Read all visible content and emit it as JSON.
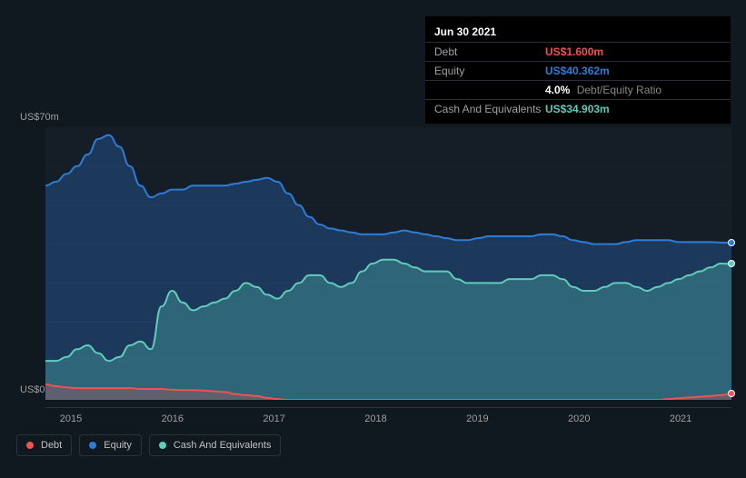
{
  "chart": {
    "type": "area",
    "background_color": "#101820",
    "plot_background": "#151d27",
    "grid_color": "#1a222c",
    "axis_text_color": "#a0a0a0",
    "ylim": [
      0,
      70
    ],
    "y_labels": [
      {
        "value": 70,
        "text": "US$70m"
      },
      {
        "value": 0,
        "text": "US$0"
      }
    ],
    "x_ticks": [
      "2015",
      "2016",
      "2017",
      "2018",
      "2019",
      "2020",
      "2021"
    ],
    "series": {
      "debt": {
        "name": "Debt",
        "color": "#ef5350",
        "fill": "rgba(239,83,80,0.25)",
        "values": [
          4.0,
          3.5,
          3.2,
          3.0,
          3.0,
          3.0,
          3.0,
          3.0,
          3.0,
          2.8,
          2.8,
          2.8,
          2.6,
          2.5,
          2.5,
          2.4,
          2.2,
          2.0,
          1.5,
          1.2,
          1.0,
          0.5,
          0.2,
          0,
          0,
          0,
          0,
          0,
          0,
          0,
          0,
          0,
          0,
          0,
          0,
          0,
          0,
          0,
          0,
          0,
          0,
          0,
          0,
          0,
          0,
          0,
          0,
          0,
          0,
          0,
          0,
          0,
          0,
          0,
          0,
          0,
          0,
          0,
          0,
          0.2,
          0.4,
          0.6,
          0.8,
          1.0,
          1.2,
          1.6
        ]
      },
      "equity": {
        "name": "Equity",
        "color": "#2e7cd6",
        "fill": "rgba(46,124,214,0.30)",
        "values": [
          55,
          56,
          58,
          60,
          63,
          67,
          68,
          65,
          60,
          55,
          52,
          53,
          54,
          54,
          55,
          55,
          55,
          55,
          55.5,
          56,
          56.5,
          57,
          56,
          53,
          50,
          47,
          45,
          44,
          43.5,
          43,
          42.5,
          42.5,
          42.5,
          43,
          43.5,
          43,
          42.5,
          42,
          41.5,
          41,
          41,
          41.5,
          42,
          42,
          42,
          42,
          42,
          42.5,
          42.5,
          42,
          41,
          40.5,
          40,
          40,
          40,
          40.5,
          41,
          41,
          41,
          41,
          40.5,
          40.5,
          40.5,
          40.5,
          40.4,
          40.362
        ]
      },
      "cash": {
        "name": "Cash And Equivalents",
        "color": "#5ecdbb",
        "fill": "rgba(94,205,187,0.30)",
        "values": [
          10,
          10,
          11,
          13,
          14,
          12,
          10,
          11,
          14,
          15,
          13,
          24,
          28,
          25,
          23,
          24,
          25,
          26,
          28,
          30,
          29,
          27,
          26,
          28,
          30,
          32,
          32,
          30,
          29,
          30,
          33,
          35,
          36,
          36,
          35,
          34,
          33,
          33,
          33,
          31,
          30,
          30,
          30,
          30,
          31,
          31,
          31,
          32,
          32,
          31,
          29,
          28,
          28,
          29,
          30,
          30,
          29,
          28,
          29,
          30,
          31,
          32,
          33,
          34,
          35,
          34.903
        ]
      }
    },
    "end_markers": [
      {
        "series": "equity",
        "color": "#2e7cd6"
      },
      {
        "series": "debt",
        "color": "#ef5350"
      },
      {
        "series": "cash",
        "color": "#5ecdbb"
      }
    ]
  },
  "tooltip": {
    "date": "Jun 30 2021",
    "rows": [
      {
        "label": "Debt",
        "value": "US$1.600m",
        "color": "#ef5350"
      },
      {
        "label": "Equity",
        "value": "US$40.362m",
        "color": "#2e7cd6"
      },
      {
        "label": "",
        "value": "4.0%",
        "suffix": "Debt/Equity Ratio",
        "color": "#ffffff",
        "suffix_color": "#888"
      },
      {
        "label": "Cash And Equivalents",
        "value": "US$34.903m",
        "color": "#5ecdbb"
      }
    ]
  },
  "legend": [
    {
      "label": "Debt",
      "color": "#ef5350"
    },
    {
      "label": "Equity",
      "color": "#2e7cd6"
    },
    {
      "label": "Cash And Equivalents",
      "color": "#5ecdbb"
    }
  ]
}
